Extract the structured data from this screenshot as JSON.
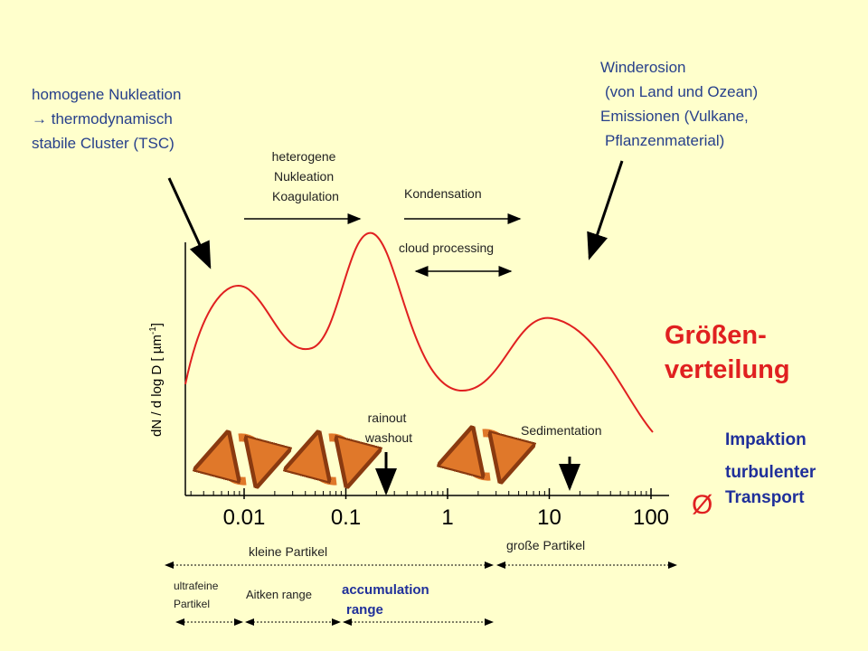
{
  "nucleation": [
    "homogene Nukleation",
    "→ thermodynamisch",
    "stabile Cluster (TSC)"
  ],
  "wind": [
    "Winderosion",
    "(von Land und Ozean)",
    "Emissionen (Vulkane,",
    "Pflanzenmaterial)"
  ],
  "heterogeneous": [
    "heterogene",
    "Nukleation",
    "Koagulation"
  ],
  "condensation": "Kondensation",
  "cloud_processing": "cloud processing",
  "title": [
    "Größen-",
    "verteilung"
  ],
  "rainout": [
    "rainout",
    "washout"
  ],
  "sedimentation": "Sedimentation",
  "impaction": "Impaktion",
  "turbulent": [
    "turbulenter",
    "Transport"
  ],
  "empty_symbol": "Ø",
  "y_axis": {
    "label": "dN / d log D [ µm",
    "exponent": "-1",
    "end": "]"
  },
  "x_tick_labels": [
    "0.01",
    "0.1",
    "1",
    "10",
    "100"
  ],
  "ranges": {
    "small": "kleine Partikel",
    "large": "große Partikel",
    "ultrafine": [
      "ultrafeine",
      "Partikel"
    ],
    "aitken": "Aitken range",
    "accumulation": [
      "accumulation",
      "range"
    ]
  }
}
